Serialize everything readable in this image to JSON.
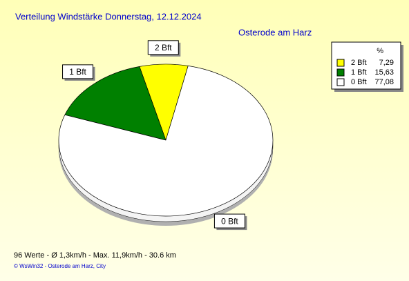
{
  "chart_data": {
    "type": "pie",
    "title": "Verteilung Windstärke  Donnerstag, 12.12.2024",
    "subtitle": "Osterode am Harz",
    "legend_title": "%",
    "categories": [
      "2 Bft",
      "1 Bft",
      "0 Bft"
    ],
    "values": [
      7.29,
      15.63,
      77.08
    ],
    "value_labels": [
      "7,29",
      "15,63",
      "77,08"
    ],
    "colors": [
      "#ffff00",
      "#008000",
      "#ffffff"
    ],
    "footer": "96 Werte   -   Ø 1,3km/h  -  Max. 11,9km/h   -   30.6 km",
    "credit": "© WsWin32  -  Osterode am Harz, City"
  }
}
